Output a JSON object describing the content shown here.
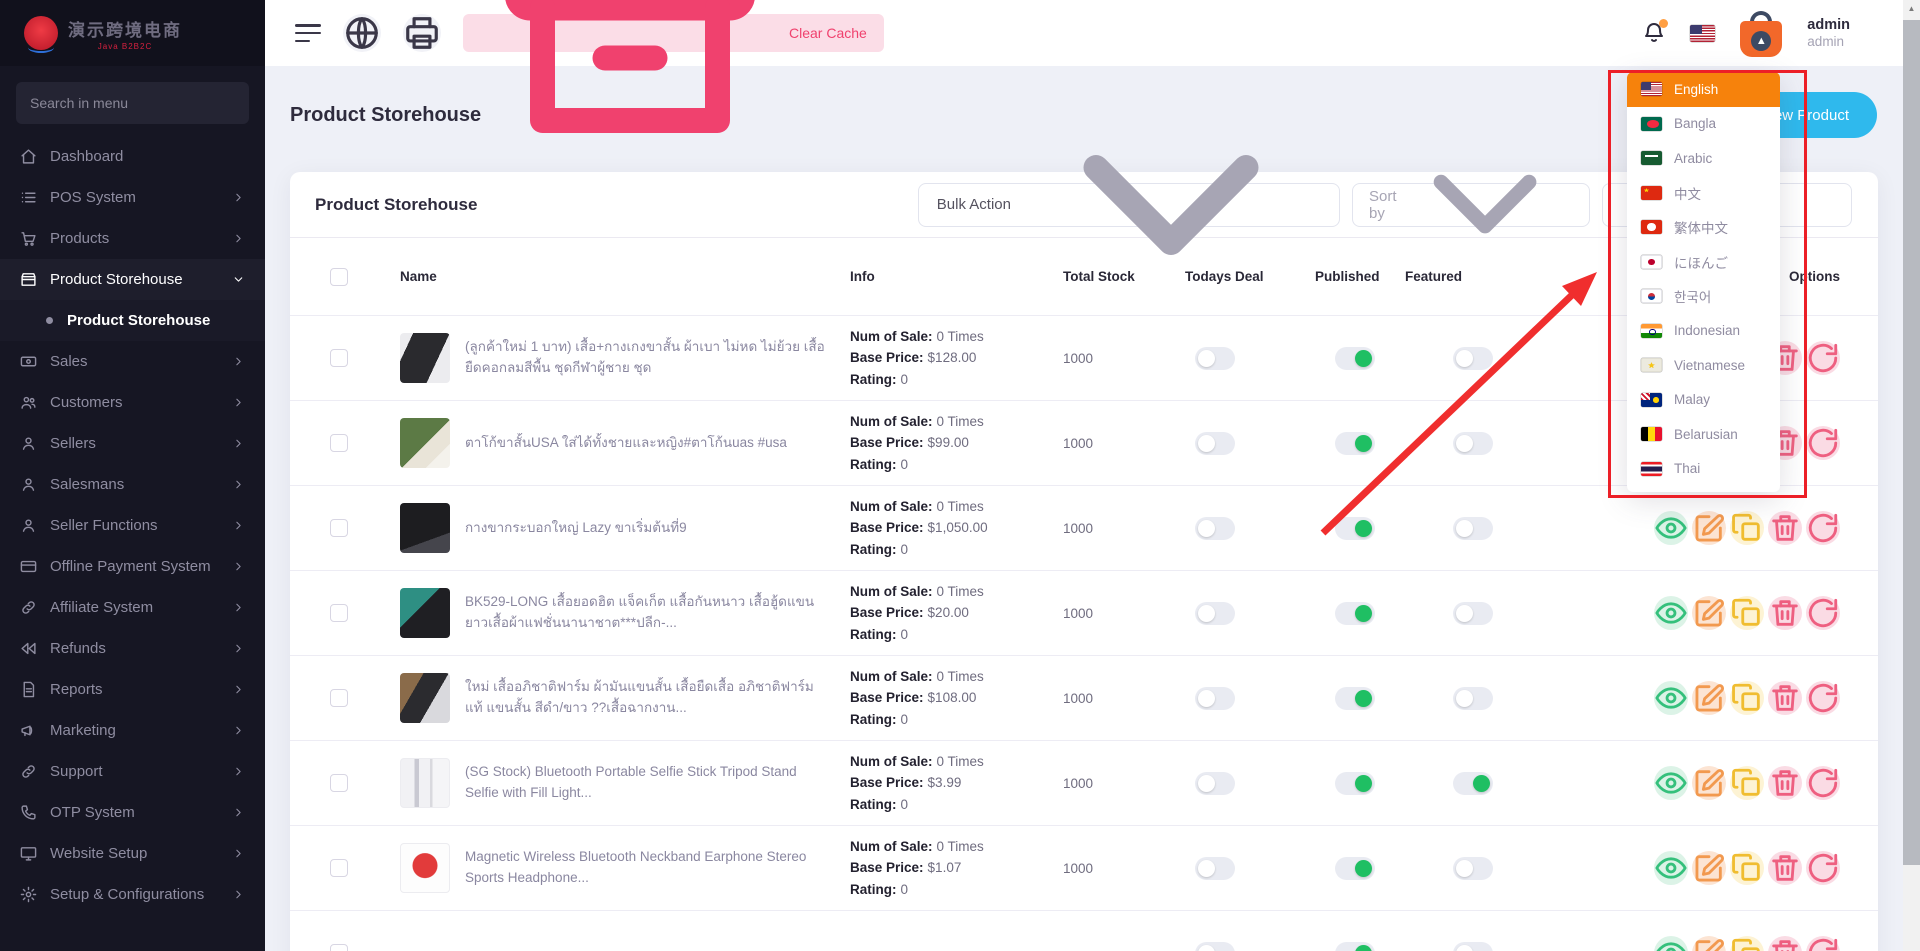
{
  "brand": {
    "name": "演示跨境电商",
    "subtitle": "Java B2B2C"
  },
  "colors": {
    "sidebar_bg": "#161623",
    "highlight_orange": "#f6820c",
    "new_product_cyan": "#2fb9ed",
    "toggle_green": "#1fbf63",
    "annotation_red": "#ec1f27",
    "clear_cache_pink": "#f0416e"
  },
  "sidebar": {
    "search_placeholder": "Search in menu",
    "items": [
      {
        "label": "Dashboard",
        "icon": "home-icon",
        "chevron": "none"
      },
      {
        "label": "POS System",
        "icon": "pos-icon",
        "chevron": "right"
      },
      {
        "label": "Products",
        "icon": "cart-icon",
        "chevron": "right"
      },
      {
        "label": "Product Storehouse",
        "icon": "store-icon",
        "chevron": "down",
        "active": true
      },
      {
        "label": "Product Storehouse",
        "type": "sub",
        "active": true
      },
      {
        "label": "Sales",
        "icon": "cash-icon",
        "chevron": "right"
      },
      {
        "label": "Customers",
        "icon": "users-icon",
        "chevron": "right"
      },
      {
        "label": "Sellers",
        "icon": "user-icon",
        "chevron": "right"
      },
      {
        "label": "Salesmans",
        "icon": "user-icon",
        "chevron": "right"
      },
      {
        "label": "Seller Functions",
        "icon": "user-icon",
        "chevron": "right"
      },
      {
        "label": "Offline Payment System",
        "icon": "card-icon",
        "chevron": "right"
      },
      {
        "label": "Affiliate System",
        "icon": "link-icon",
        "chevron": "right"
      },
      {
        "label": "Refunds",
        "icon": "rewind-icon",
        "chevron": "right"
      },
      {
        "label": "Reports",
        "icon": "file-icon",
        "chevron": "right"
      },
      {
        "label": "Marketing",
        "icon": "megaphone-icon",
        "chevron": "right"
      },
      {
        "label": "Support",
        "icon": "link-icon",
        "chevron": "right"
      },
      {
        "label": "OTP System",
        "icon": "phone-icon",
        "chevron": "right"
      },
      {
        "label": "Website Setup",
        "icon": "monitor-icon",
        "chevron": "right"
      },
      {
        "label": "Setup & Configurations",
        "icon": "gear-icon",
        "chevron": "right"
      }
    ]
  },
  "topbar": {
    "clear_cache": "Clear Cache",
    "user_name": "admin",
    "user_role": "admin"
  },
  "page": {
    "title": "Product Storehouse",
    "new_product": "New Product"
  },
  "card": {
    "title": "Product Storehouse",
    "bulk_action": "Bulk Action",
    "sort_by": "Sort by"
  },
  "table": {
    "headers": [
      "Name",
      "Info",
      "Total Stock",
      "Todays Deal",
      "Published",
      "Featured",
      "Options"
    ]
  },
  "info_labels": {
    "num_of_sale": "Num of Sale:",
    "base_price": "Base Price:",
    "rating": "Rating:"
  },
  "rows": [
    {
      "name": "(ลูกค้าใหม่ 1 บาท) เสื้อ+กางเกงขาสั้น ผ้าเบา ไม่หด ไม่ย้วย เสื้อยืดคอกลมสีพื้น ชุดกีฬาผู้ชาย ชุด",
      "num_of_sale": "0 Times",
      "base_price": "$128.00",
      "rating": "0",
      "total_stock": "1000",
      "todays_deal": false,
      "published": true,
      "featured": false,
      "thumb": "outfit-black"
    },
    {
      "name": "ตาโก้ขาสั้นUSA ใส่ได้ทั้งชายและหญิง#ตาโก้นuas #usa",
      "num_of_sale": "0 Times",
      "base_price": "$99.00",
      "rating": "0",
      "total_stock": "1000",
      "todays_deal": false,
      "published": true,
      "featured": false,
      "thumb": "shorts-grass"
    },
    {
      "name": "กางขากระบอกใหญ่ Lazy ขาเริ่มต้นที่9",
      "num_of_sale": "0 Times",
      "base_price": "$1,050.00",
      "rating": "0",
      "total_stock": "1000",
      "todays_deal": false,
      "published": true,
      "featured": false,
      "thumb": "jeans-black"
    },
    {
      "name": "BK529-LONG เสื้อยอดฮิต แจ็คเก็ต แสื้อกันหนาว เสื้อฮู้ดแขนยาวเสื้อผ้าแฟชั่นนานาชาต***ปลีก-...",
      "num_of_sale": "0 Times",
      "base_price": "$20.00",
      "rating": "0",
      "total_stock": "1000",
      "todays_deal": false,
      "published": true,
      "featured": false,
      "thumb": "hoodie-teal"
    },
    {
      "name": "ใหม่ เสื้ออภิชาติฟาร์ม ผ้ามันแขนสั้น เสื้อยืดเสื้อ อภิชาติฟาร์ม แท้ แขนสั้น สีดำ/ขาว ??เสื้อฉากงาน...",
      "num_of_sale": "0 Times",
      "base_price": "$108.00",
      "rating": "0",
      "total_stock": "1000",
      "todays_deal": false,
      "published": true,
      "featured": false,
      "thumb": "tees-wood"
    },
    {
      "name": "(SG Stock) Bluetooth Portable Selfie Stick Tripod Stand Selfie with Fill Light...",
      "num_of_sale": "0 Times",
      "base_price": "$3.99",
      "rating": "0",
      "total_stock": "1000",
      "todays_deal": false,
      "published": true,
      "featured": true,
      "thumb": "selfie-stick"
    },
    {
      "name": "Magnetic Wireless Bluetooth Neckband Earphone Stereo Sports Headphone...",
      "num_of_sale": "0 Times",
      "base_price": "$1.07",
      "rating": "0",
      "total_stock": "1000",
      "todays_deal": false,
      "published": true,
      "featured": false,
      "thumb": "earphones-red"
    },
    {
      "name": "",
      "num_of_sale": "",
      "base_price": "",
      "rating": "",
      "total_stock": "",
      "todays_deal": false,
      "published": true,
      "featured": false,
      "thumb": "hidden"
    }
  ],
  "language_menu": {
    "items": [
      {
        "label": "English",
        "flag": "us",
        "active": true
      },
      {
        "label": "Bangla",
        "flag": "bd"
      },
      {
        "label": "Arabic",
        "flag": "sa"
      },
      {
        "label": "中文",
        "flag": "cn"
      },
      {
        "label": "繁体中文",
        "flag": "hk"
      },
      {
        "label": "にほんご",
        "flag": "jp"
      },
      {
        "label": "한국어",
        "flag": "kr"
      },
      {
        "label": "Indonesian",
        "flag": "in"
      },
      {
        "label": "Vietnamese",
        "flag": "vi"
      },
      {
        "label": "Malay",
        "flag": "my"
      },
      {
        "label": "Belarusian",
        "flag": "be"
      },
      {
        "label": "Thai",
        "flag": "th"
      }
    ]
  }
}
